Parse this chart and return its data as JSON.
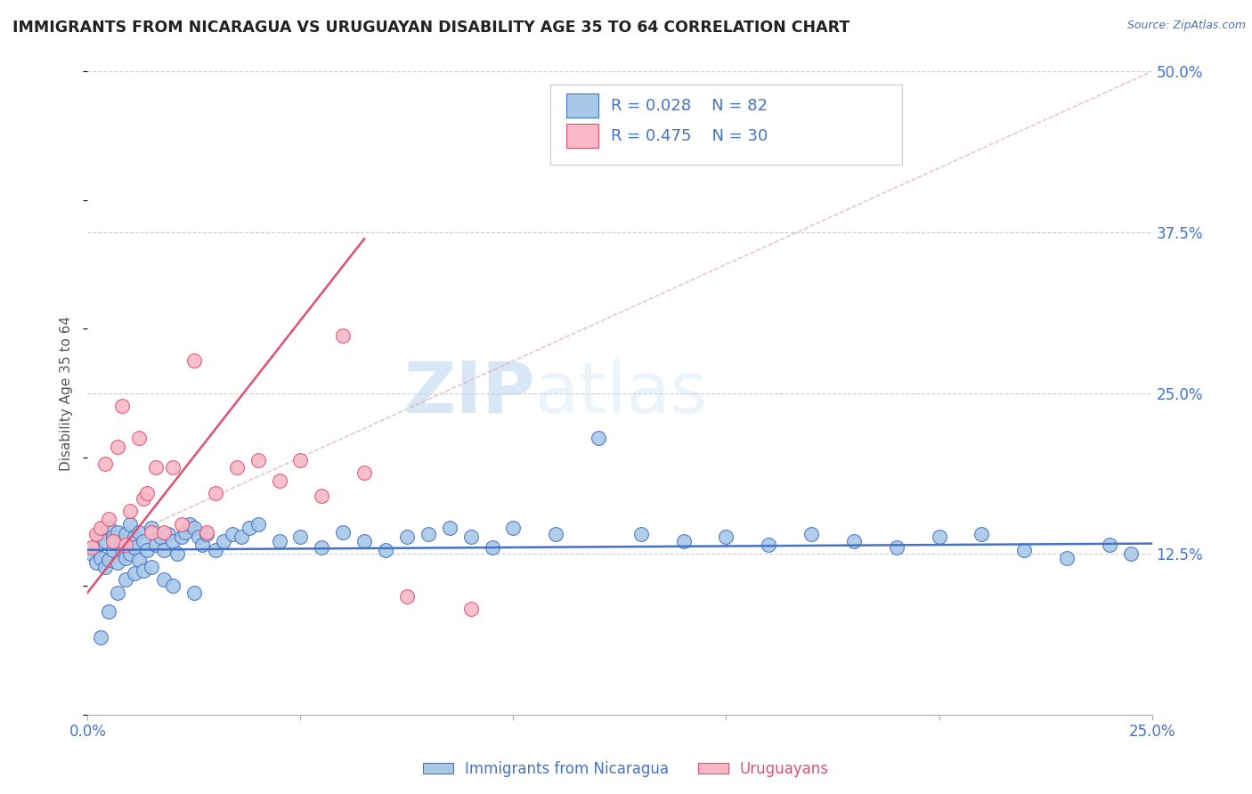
{
  "title": "IMMIGRANTS FROM NICARAGUA VS URUGUAYAN DISABILITY AGE 35 TO 64 CORRELATION CHART",
  "source_text": "Source: ZipAtlas.com",
  "ylabel": "Disability Age 35 to 64",
  "legend_label_1": "Immigrants from Nicaragua",
  "legend_label_2": "Uruguayans",
  "r1": 0.028,
  "n1": 82,
  "r2": 0.475,
  "n2": 30,
  "color1": "#a8c8e8",
  "color2": "#f8b8c8",
  "trendline1_color": "#4472c4",
  "trendline2_color": "#e05070",
  "xlim": [
    0.0,
    0.25
  ],
  "ylim": [
    0.0,
    0.5
  ],
  "yticks_right": [
    0.125,
    0.25,
    0.375,
    0.5
  ],
  "ytick_labels_right": [
    "12.5%",
    "25.0%",
    "37.5%",
    "50.0%"
  ],
  "background_color": "#ffffff",
  "watermark_zip": "ZIP",
  "watermark_atlas": "atlas",
  "scatter1_x": [
    0.001,
    0.002,
    0.002,
    0.003,
    0.003,
    0.004,
    0.004,
    0.005,
    0.005,
    0.006,
    0.006,
    0.007,
    0.007,
    0.008,
    0.008,
    0.009,
    0.009,
    0.01,
    0.01,
    0.011,
    0.011,
    0.012,
    0.012,
    0.013,
    0.014,
    0.015,
    0.016,
    0.017,
    0.018,
    0.019,
    0.02,
    0.021,
    0.022,
    0.023,
    0.024,
    0.025,
    0.026,
    0.027,
    0.028,
    0.03,
    0.032,
    0.034,
    0.036,
    0.038,
    0.04,
    0.045,
    0.05,
    0.055,
    0.06,
    0.065,
    0.07,
    0.075,
    0.08,
    0.085,
    0.09,
    0.095,
    0.1,
    0.11,
    0.12,
    0.13,
    0.14,
    0.15,
    0.16,
    0.17,
    0.18,
    0.19,
    0.2,
    0.21,
    0.22,
    0.23,
    0.24,
    0.245,
    0.003,
    0.005,
    0.007,
    0.009,
    0.011,
    0.013,
    0.015,
    0.018,
    0.02,
    0.025
  ],
  "scatter1_y": [
    0.125,
    0.13,
    0.118,
    0.14,
    0.122,
    0.135,
    0.115,
    0.145,
    0.12,
    0.138,
    0.128,
    0.142,
    0.118,
    0.135,
    0.128,
    0.14,
    0.122,
    0.148,
    0.125,
    0.138,
    0.13,
    0.142,
    0.12,
    0.135,
    0.128,
    0.145,
    0.132,
    0.138,
    0.128,
    0.14,
    0.135,
    0.125,
    0.138,
    0.142,
    0.148,
    0.145,
    0.138,
    0.132,
    0.14,
    0.128,
    0.135,
    0.14,
    0.138,
    0.145,
    0.148,
    0.135,
    0.138,
    0.13,
    0.142,
    0.135,
    0.128,
    0.138,
    0.14,
    0.145,
    0.138,
    0.13,
    0.145,
    0.14,
    0.215,
    0.14,
    0.135,
    0.138,
    0.132,
    0.14,
    0.135,
    0.13,
    0.138,
    0.14,
    0.128,
    0.122,
    0.132,
    0.125,
    0.06,
    0.08,
    0.095,
    0.105,
    0.11,
    0.112,
    0.115,
    0.105,
    0.1,
    0.095
  ],
  "scatter2_x": [
    0.001,
    0.002,
    0.003,
    0.004,
    0.005,
    0.006,
    0.007,
    0.008,
    0.009,
    0.01,
    0.012,
    0.013,
    0.014,
    0.015,
    0.016,
    0.018,
    0.02,
    0.022,
    0.025,
    0.028,
    0.03,
    0.035,
    0.04,
    0.045,
    0.05,
    0.055,
    0.06,
    0.065,
    0.075,
    0.09
  ],
  "scatter2_y": [
    0.13,
    0.14,
    0.145,
    0.195,
    0.152,
    0.135,
    0.208,
    0.24,
    0.132,
    0.158,
    0.215,
    0.168,
    0.172,
    0.142,
    0.192,
    0.142,
    0.192,
    0.148,
    0.275,
    0.142,
    0.172,
    0.192,
    0.198,
    0.182,
    0.198,
    0.17,
    0.295,
    0.188,
    0.092,
    0.082
  ],
  "trendline1_x": [
    0.0,
    0.25
  ],
  "trendline1_y": [
    0.128,
    0.133
  ],
  "trendline2_x": [
    0.0,
    0.065
  ],
  "trendline2_y": [
    0.095,
    0.37
  ],
  "refline_x": [
    0.0,
    0.25
  ],
  "refline_y": [
    0.125,
    0.5
  ]
}
